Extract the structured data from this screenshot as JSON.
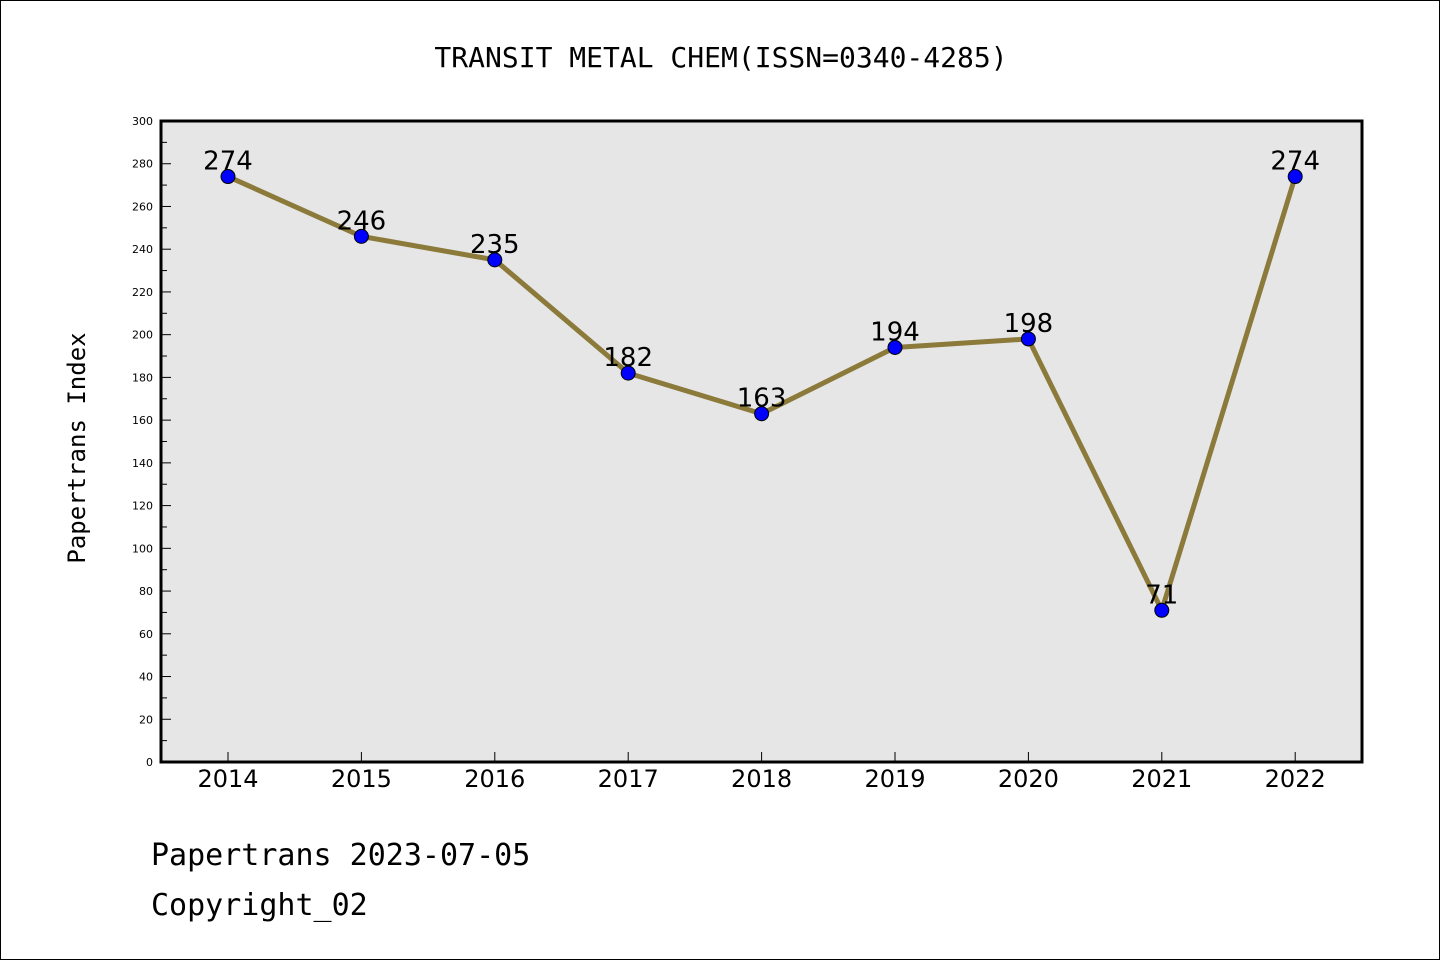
{
  "chart_data": {
    "type": "line",
    "title": "TRANSIT METAL CHEM(ISSN=0340-4285)",
    "xlabel": "",
    "ylabel": "Papertrans Index",
    "x": [
      "2014",
      "2015",
      "2016",
      "2017",
      "2018",
      "2019",
      "2020",
      "2021",
      "2022"
    ],
    "series": [
      {
        "values": [
          274,
          246,
          235,
          182,
          163,
          194,
          198,
          71,
          274
        ],
        "line_color": "#8b7a3a",
        "marker_color": "#0000ff"
      }
    ],
    "data_labels": [
      "274",
      "246",
      "235",
      "182",
      "163",
      "194",
      "198",
      "71",
      "274"
    ],
    "ylim": [
      0,
      300
    ],
    "yticks": [
      0,
      20,
      40,
      60,
      80,
      100,
      120,
      140,
      160,
      180,
      200,
      220,
      240,
      260,
      280,
      300
    ],
    "grid": false,
    "plot_background": "#e6e6e6"
  },
  "footer": {
    "line1": "Papertrans 2023-07-05",
    "line2": "Copyright_02"
  }
}
